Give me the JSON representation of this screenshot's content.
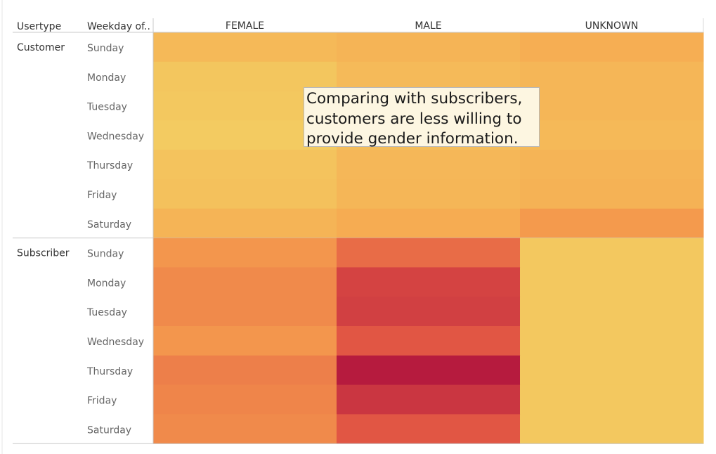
{
  "chart_data": {
    "type": "heatmap",
    "row_headers": [
      "Usertype",
      "Weekday of.."
    ],
    "columns": [
      "FEMALE",
      "MALE",
      "UNKNOWN"
    ],
    "groups": [
      {
        "name": "Customer",
        "rows": [
          {
            "day": "Sunday",
            "values": [
              0.18,
              0.22,
              0.26
            ]
          },
          {
            "day": "Monday",
            "values": [
              0.08,
              0.17,
              0.2
            ]
          },
          {
            "day": "Tuesday",
            "values": [
              0.06,
              0.17,
              0.2
            ]
          },
          {
            "day": "Wednesday",
            "values": [
              0.04,
              0.15,
              0.18
            ]
          },
          {
            "day": "Thursday",
            "values": [
              0.1,
              0.19,
              0.22
            ]
          },
          {
            "day": "Friday",
            "values": [
              0.12,
              0.2,
              0.23
            ]
          },
          {
            "day": "Saturday",
            "values": [
              0.22,
              0.28,
              0.38
            ]
          }
        ]
      },
      {
        "name": "Subscriber",
        "rows": [
          {
            "day": "Sunday",
            "values": [
              0.4,
              0.58,
              0.06
            ]
          },
          {
            "day": "Monday",
            "values": [
              0.45,
              0.78,
              0.06
            ]
          },
          {
            "day": "Tuesday",
            "values": [
              0.45,
              0.8,
              0.06
            ]
          },
          {
            "day": "Wednesday",
            "values": [
              0.4,
              0.68,
              0.06
            ]
          },
          {
            "day": "Thursday",
            "values": [
              0.5,
              1.0,
              0.06
            ]
          },
          {
            "day": "Friday",
            "values": [
              0.47,
              0.85,
              0.06
            ]
          },
          {
            "day": "Saturday",
            "values": [
              0.45,
              0.68,
              0.06
            ]
          }
        ]
      }
    ],
    "value_scale": "relative intensity 0-1 (no legend shown)",
    "color_scale": [
      "#f2d063",
      "#f7a54f",
      "#e35844",
      "#b61b3e"
    ],
    "annotation": "Comparing with subscribers,\ncustomers are less willing to\nprovide gender information."
  }
}
